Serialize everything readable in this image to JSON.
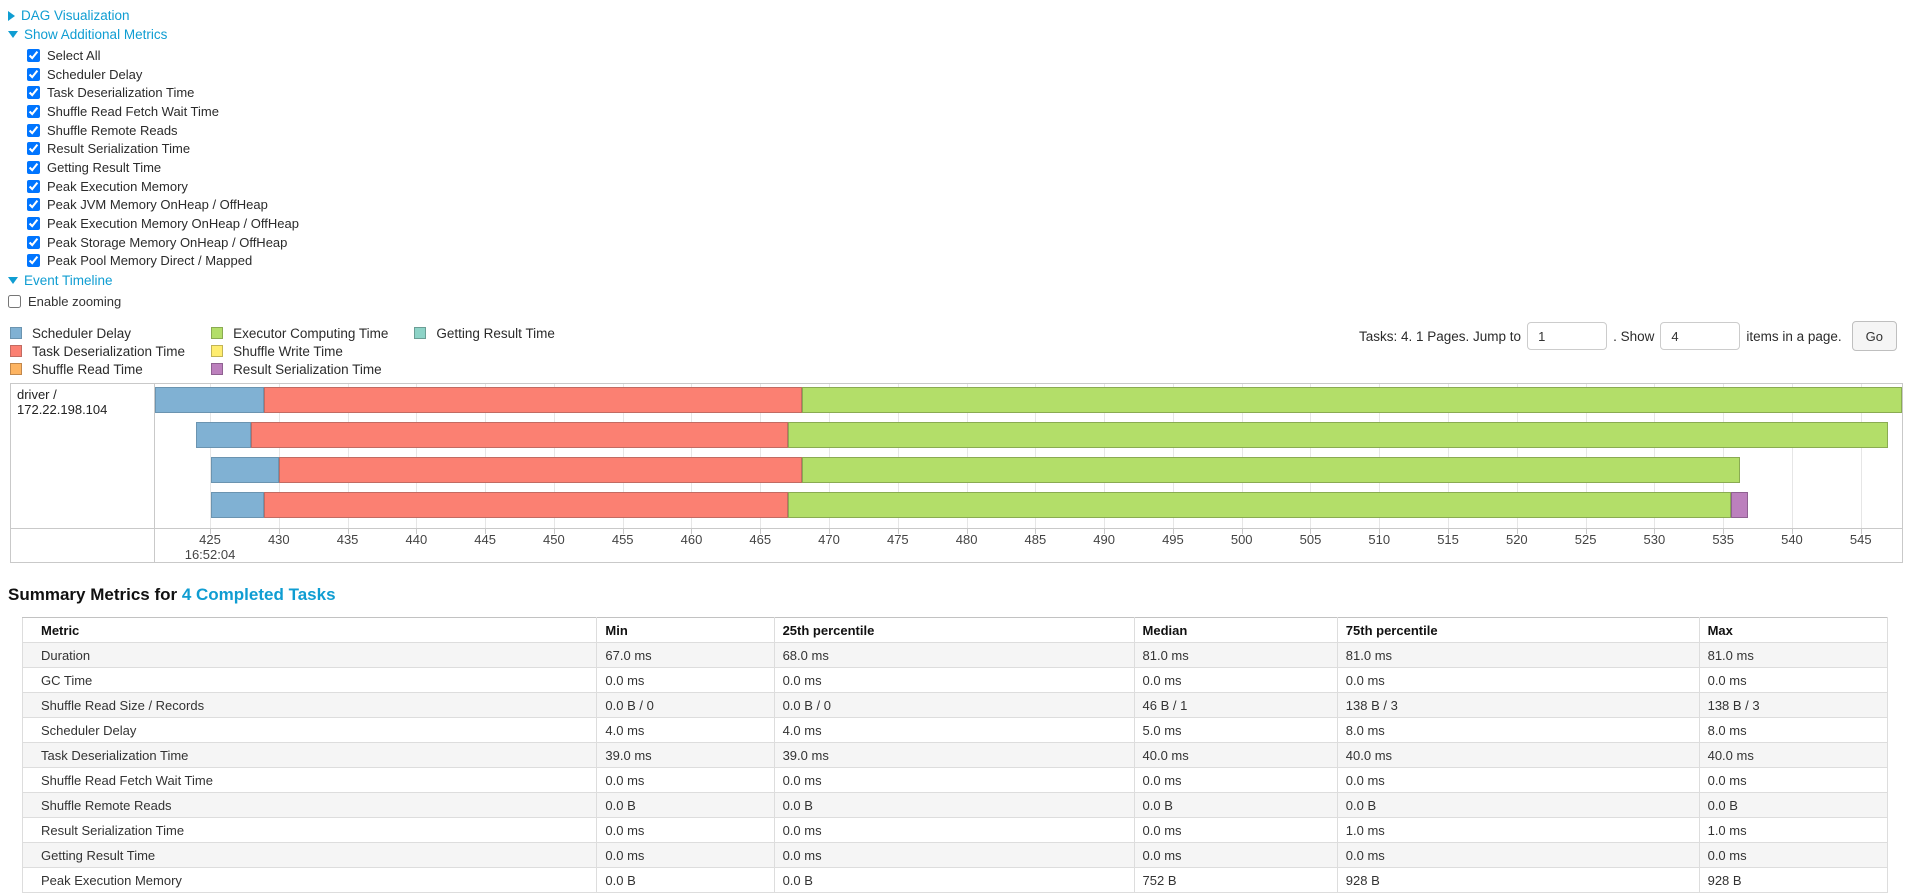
{
  "controls": {
    "dag_visualization_label": "DAG Visualization",
    "show_additional_metrics_label": "Show Additional Metrics",
    "metrics_checkboxes": [
      {
        "label": "Select All",
        "checked": true
      },
      {
        "label": "Scheduler Delay",
        "checked": true
      },
      {
        "label": "Task Deserialization Time",
        "checked": true
      },
      {
        "label": "Shuffle Read Fetch Wait Time",
        "checked": true
      },
      {
        "label": "Shuffle Remote Reads",
        "checked": true
      },
      {
        "label": "Result Serialization Time",
        "checked": true
      },
      {
        "label": "Getting Result Time",
        "checked": true
      },
      {
        "label": "Peak Execution Memory",
        "checked": true
      },
      {
        "label": "Peak JVM Memory OnHeap / OffHeap",
        "checked": true
      },
      {
        "label": "Peak Execution Memory OnHeap / OffHeap",
        "checked": true
      },
      {
        "label": "Peak Storage Memory OnHeap / OffHeap",
        "checked": true
      },
      {
        "label": "Peak Pool Memory Direct / Mapped",
        "checked": true
      }
    ],
    "event_timeline_label": "Event Timeline",
    "enable_zooming": {
      "label": "Enable zooming",
      "checked": false
    }
  },
  "pagination": {
    "prefix_text": "Tasks: 4. 1 Pages. Jump to",
    "jump_value": "1",
    "mid_text": ". Show",
    "show_value": "4",
    "suffix_text": "items in a page.",
    "go_label": "Go"
  },
  "colors": {
    "link": "#0f9dd2",
    "segment_types": {
      "scheduler_delay": {
        "label": "Scheduler Delay",
        "fill": "#80B1D3",
        "stroke": "#6B94B0"
      },
      "task_deserialization": {
        "label": "Task Deserialization Time",
        "fill": "#FB8072",
        "stroke": "#C26B62"
      },
      "shuffle_read": {
        "label": "Shuffle Read Time",
        "fill": "#FDB462",
        "stroke": "#C2884C"
      },
      "executor_computing": {
        "label": "Executor Computing Time",
        "fill": "#B3DE69",
        "stroke": "#8AAB52"
      },
      "shuffle_write": {
        "label": "Shuffle Write Time",
        "fill": "#FFED6F",
        "stroke": "#C2B456"
      },
      "result_serialization": {
        "label": "Result Serialization Time",
        "fill": "#BC80BD",
        "stroke": "#8F6191"
      },
      "getting_result": {
        "label": "Getting Result Time",
        "fill": "#8DD3C7",
        "stroke": "#6B9E95"
      }
    },
    "legend_order": [
      "scheduler_delay",
      "task_deserialization",
      "shuffle_read",
      "executor_computing",
      "shuffle_write",
      "result_serialization",
      "getting_result"
    ]
  },
  "chart_data": {
    "type": "bar",
    "subtype": "event-timeline-stacked-horizontal",
    "group_label": "driver / 172.22.198.104",
    "x_axis": {
      "min": 421,
      "max": 548,
      "tick_start": 425,
      "tick_end": 550,
      "tick_step": 5,
      "first_tick_time_label": "16:52:04"
    },
    "bars": [
      {
        "segments": [
          {
            "type": "scheduler_delay",
            "start": 421.0,
            "end": 428.9
          },
          {
            "type": "task_deserialization",
            "start": 428.9,
            "end": 468.0
          },
          {
            "type": "executor_computing",
            "start": 468.0,
            "end": 548.0
          }
        ]
      },
      {
        "segments": [
          {
            "type": "scheduler_delay",
            "start": 424.0,
            "end": 428.0
          },
          {
            "type": "task_deserialization",
            "start": 428.0,
            "end": 467.0
          },
          {
            "type": "executor_computing",
            "start": 467.0,
            "end": 547.0
          }
        ]
      },
      {
        "segments": [
          {
            "type": "scheduler_delay",
            "start": 425.1,
            "end": 430.0
          },
          {
            "type": "task_deserialization",
            "start": 430.0,
            "end": 468.0
          },
          {
            "type": "executor_computing",
            "start": 468.0,
            "end": 536.2
          }
        ]
      },
      {
        "segments": [
          {
            "type": "scheduler_delay",
            "start": 425.1,
            "end": 428.9
          },
          {
            "type": "task_deserialization",
            "start": 428.9,
            "end": 467.0
          },
          {
            "type": "executor_computing",
            "start": 467.0,
            "end": 535.6
          },
          {
            "type": "result_serialization",
            "start": 535.6,
            "end": 536.8
          }
        ]
      }
    ]
  },
  "summary": {
    "heading_prefix": "Summary Metrics for ",
    "heading_link": "4 Completed Tasks",
    "table": {
      "columns": [
        "Metric",
        "Min",
        "25th percentile",
        "Median",
        "75th percentile",
        "Max"
      ],
      "rows": [
        [
          "Duration",
          "67.0 ms",
          "68.0 ms",
          "81.0 ms",
          "81.0 ms",
          "81.0 ms"
        ],
        [
          "GC Time",
          "0.0 ms",
          "0.0 ms",
          "0.0 ms",
          "0.0 ms",
          "0.0 ms"
        ],
        [
          "Shuffle Read Size / Records",
          "0.0 B / 0",
          "0.0 B / 0",
          "46 B / 1",
          "138 B / 3",
          "138 B / 3"
        ],
        [
          "Scheduler Delay",
          "4.0 ms",
          "4.0 ms",
          "5.0 ms",
          "8.0 ms",
          "8.0 ms"
        ],
        [
          "Task Deserialization Time",
          "39.0 ms",
          "39.0 ms",
          "40.0 ms",
          "40.0 ms",
          "40.0 ms"
        ],
        [
          "Shuffle Read Fetch Wait Time",
          "0.0 ms",
          "0.0 ms",
          "0.0 ms",
          "0.0 ms",
          "0.0 ms"
        ],
        [
          "Shuffle Remote Reads",
          "0.0 B",
          "0.0 B",
          "0.0 B",
          "0.0 B",
          "0.0 B"
        ],
        [
          "Result Serialization Time",
          "0.0 ms",
          "0.0 ms",
          "0.0 ms",
          "1.0 ms",
          "1.0 ms"
        ],
        [
          "Getting Result Time",
          "0.0 ms",
          "0.0 ms",
          "0.0 ms",
          "0.0 ms",
          "0.0 ms"
        ],
        [
          "Peak Execution Memory",
          "0.0 B",
          "0.0 B",
          "752 B",
          "928 B",
          "928 B"
        ]
      ]
    }
  }
}
